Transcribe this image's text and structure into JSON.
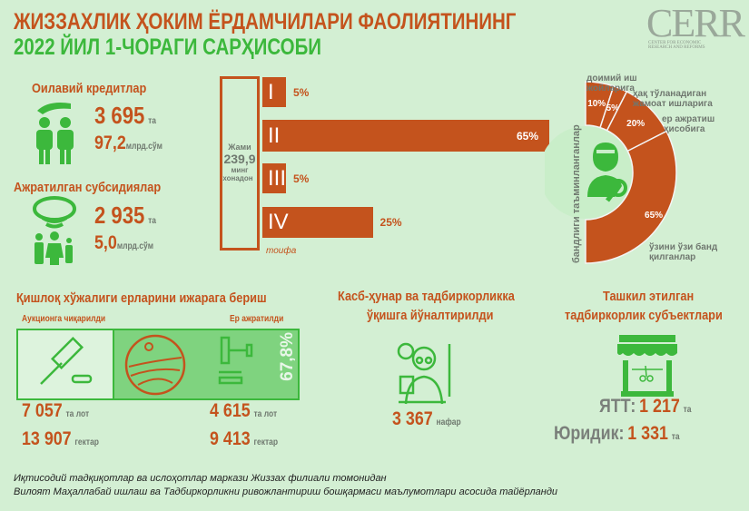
{
  "header": {
    "title": "ЖИЗЗАХЛИК ҲОКИМ ЁРДАМЧИЛАРИ ФАОЛИЯТИНИНГ",
    "subtitle": "2022 ЙИЛ 1-ЧОРАГИ САРҲИСОБИ",
    "logo": "CERR",
    "logo_sub1": "CENTER FOR ECONOMIC",
    "logo_sub2": "RESEARCH AND REFORMS"
  },
  "family_credits": {
    "title": "Оилавий кредитлар",
    "count": "3 695",
    "count_unit": "та",
    "amount": "97,2",
    "amount_unit": "млрд.сўм"
  },
  "subsidies": {
    "title": "Ажратилган субсидиялар",
    "count": "2 935",
    "count_unit": "та",
    "amount": "5,0",
    "amount_unit": "млрд.сўм"
  },
  "categories": {
    "total_label": "Жами",
    "total": "239,9",
    "total_unit1": "минг",
    "total_unit2": "хонадон",
    "axis_label": "тоифа",
    "items": [
      {
        "label": "I",
        "value": 5,
        "pct": "5%"
      },
      {
        "label": "II",
        "value": 65,
        "pct": "65%"
      },
      {
        "label": "III",
        "value": 5,
        "pct": "5%"
      },
      {
        "label": "IV",
        "value": 25,
        "pct": "25%"
      }
    ]
  },
  "employment": {
    "title": "бандлиги таъминланганлар",
    "segments": [
      {
        "label1": "доимий иш",
        "label2": "жойларига",
        "value": 10,
        "pct": "10%"
      },
      {
        "label1": "ҳақ тўланадиган",
        "label2": "жамоат ишларига",
        "value": 5,
        "pct": "5%"
      },
      {
        "label1": "ер ажратиш",
        "label2": "ҳисобига",
        "value": 20,
        "pct": "20%"
      },
      {
        "label1": "ўзини ўзи банд",
        "label2": "қилганлар",
        "value": 65,
        "pct": "65%"
      }
    ]
  },
  "land": {
    "title": "Қишлоқ хўжалиги ерларини ижарага бериш",
    "auction_label": "Аукционга чиқарилди",
    "allocated_label": "Ер ажратилди",
    "share": "67,8%",
    "auction_lots": "7 057",
    "lots_unit": "та лот",
    "auction_ha": "13 907",
    "ha_unit": "гектар",
    "allocated_lots": "4 615",
    "allocated_ha": "9 413"
  },
  "training": {
    "title1": "Касб-ҳунар ва тадбиркорликка",
    "title2": "ўқишга йўналтирилди",
    "count": "3 367",
    "unit": "нафар"
  },
  "entities": {
    "title1": "Ташкил этилган",
    "title2": "тадбиркорлик субъектлари",
    "ytt_label": "ЯТТ:",
    "ytt_value": "1 217",
    "legal_label": "Юридик:",
    "legal_value": "1 331",
    "unit": "та"
  },
  "footer": {
    "line1": "Иқтисодий тадқиқотлар ва ислоҳотлар маркази Жиззах филиали томонидан",
    "line2": "Вилоят Маҳаллабай ишлаш ва Тадбиркорликни ривожлантириш бошқармаси маълумотлари асосида тайёрланди"
  },
  "colors": {
    "orange": "#c4531d",
    "green": "#3cb83c",
    "background": "#d3efd3"
  }
}
